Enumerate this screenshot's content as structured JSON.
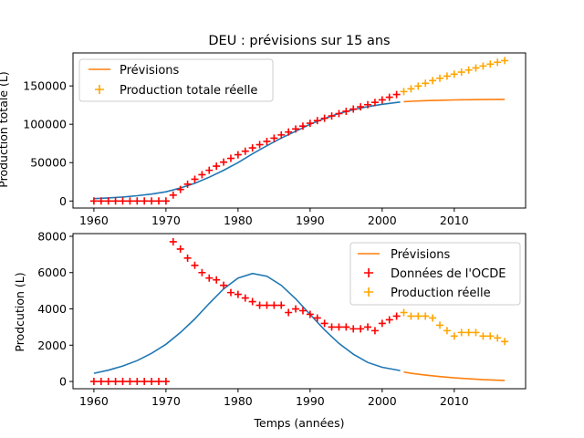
{
  "chart_data": [
    {
      "type": "line",
      "title": "DEU : prévisions sur 15 ans",
      "xlabel": "",
      "ylabel": "Production totale (L)",
      "xlim": [
        1957.1,
        2019.9
      ],
      "ylim": [
        -9200,
        193000
      ],
      "xticks": [
        1960,
        1970,
        1980,
        1990,
        2000,
        2010
      ],
      "yticks": [
        0,
        50000,
        100000,
        150000
      ],
      "yticklabels": [
        "0",
        "50000",
        "100000",
        "150000"
      ],
      "legend_position": "upper-left",
      "legend": [
        "Prévisions",
        "Production totale réelle"
      ],
      "colors": {
        "fit": "#1f77b4",
        "forecast": "#ff7f0e",
        "oecd": "#ff0000",
        "real": "#ffa500"
      },
      "series": [
        {
          "role": "fit",
          "x": [
            1960,
            1962,
            1964,
            1966,
            1968,
            1970,
            1972,
            1974,
            1976,
            1978,
            1980,
            1982,
            1984,
            1986,
            1988,
            1990,
            1992,
            1994,
            1996,
            1998,
            2000,
            2002.5
          ],
          "y": [
            3000,
            4000,
            5200,
            6800,
            9000,
            12000,
            17000,
            23000,
            31000,
            40000,
            50000,
            61500,
            72000,
            82000,
            91000,
            100000,
            107500,
            114000,
            119000,
            123000,
            126000,
            129000
          ]
        },
        {
          "role": "forecast",
          "x": [
            2003,
            2004,
            2006,
            2008,
            2010,
            2012,
            2014,
            2017
          ],
          "y": [
            129500,
            130000,
            130800,
            131300,
            131700,
            132000,
            132200,
            132400
          ]
        },
        {
          "role": "oecd",
          "x": [
            1960,
            1961,
            1962,
            1963,
            1964,
            1965,
            1966,
            1967,
            1968,
            1969,
            1970,
            1971,
            1972,
            1973,
            1974,
            1975,
            1976,
            1977,
            1978,
            1979,
            1980,
            1981,
            1982,
            1983,
            1984,
            1985,
            1986,
            1987,
            1988,
            1989,
            1990,
            1991,
            1992,
            1993,
            1994,
            1995,
            1996,
            1997,
            1998,
            1999,
            2000,
            2001,
            2002
          ],
          "y": [
            0,
            0,
            0,
            0,
            0,
            0,
            0,
            0,
            0,
            0,
            0,
            7700,
            15000,
            21900,
            28300,
            34300,
            40000,
            45400,
            50700,
            55600,
            60300,
            64900,
            69200,
            73400,
            77700,
            81900,
            86100,
            89900,
            93900,
            97600,
            101300,
            104800,
            107800,
            110800,
            113900,
            116900,
            119800,
            122700,
            125500,
            128500,
            131800,
            135200,
            138800
          ]
        },
        {
          "role": "real",
          "x": [
            2003,
            2004,
            2005,
            2006,
            2007,
            2008,
            2009,
            2010,
            2011,
            2012,
            2013,
            2014,
            2015,
            2016,
            2017
          ],
          "y": [
            142600,
            146200,
            149800,
            153400,
            156900,
            160000,
            162800,
            165300,
            168000,
            170700,
            173400,
            175900,
            178400,
            180800,
            183000
          ]
        }
      ]
    },
    {
      "type": "line",
      "title": "",
      "xlabel": "Temps (années)",
      "ylabel": "Prodcution (L)",
      "xlim": [
        1957.1,
        2019.9
      ],
      "ylim": [
        -400,
        8150
      ],
      "xticks": [
        1960,
        1970,
        1980,
        1990,
        2000,
        2010
      ],
      "yticks": [
        0,
        2000,
        4000,
        6000,
        8000
      ],
      "yticklabels": [
        "0",
        "2000",
        "4000",
        "6000",
        "8000"
      ],
      "legend_position": "upper-right",
      "legend": [
        "Prévisions",
        "Données de l'OCDE",
        "Production réelle"
      ],
      "colors": {
        "fit": "#1f77b4",
        "forecast": "#ff7f0e",
        "oecd": "#ff0000",
        "real": "#ffa500"
      },
      "series": [
        {
          "role": "fit",
          "x": [
            1960,
            1962,
            1964,
            1966,
            1968,
            1970,
            1972,
            1974,
            1976,
            1978,
            1980,
            1982,
            1984,
            1986,
            1988,
            1990,
            1992,
            1994,
            1996,
            1998,
            2000,
            2002.5
          ],
          "y": [
            450,
            620,
            850,
            1150,
            1550,
            2050,
            2700,
            3450,
            4300,
            5100,
            5700,
            5950,
            5800,
            5300,
            4550,
            3700,
            2850,
            2100,
            1500,
            1050,
            780,
            600
          ]
        },
        {
          "role": "forecast",
          "x": [
            2003,
            2004,
            2006,
            2008,
            2010,
            2012,
            2014,
            2017
          ],
          "y": [
            520,
            450,
            350,
            270,
            200,
            150,
            100,
            60
          ]
        },
        {
          "role": "oecd",
          "x": [
            1960,
            1961,
            1962,
            1963,
            1964,
            1965,
            1966,
            1967,
            1968,
            1969,
            1970,
            1971,
            1972,
            1973,
            1974,
            1975,
            1976,
            1977,
            1978,
            1979,
            1980,
            1981,
            1982,
            1983,
            1984,
            1985,
            1986,
            1987,
            1988,
            1989,
            1990,
            1991,
            1992,
            1993,
            1994,
            1995,
            1996,
            1997,
            1998,
            1999,
            2000,
            2001,
            2002
          ],
          "y": [
            0,
            0,
            0,
            0,
            0,
            0,
            0,
            0,
            0,
            0,
            0,
            7700,
            7300,
            6800,
            6400,
            6000,
            5700,
            5600,
            5300,
            4900,
            4800,
            4600,
            4400,
            4200,
            4200,
            4200,
            4200,
            3800,
            4000,
            3900,
            3700,
            3500,
            3200,
            3000,
            3000,
            3000,
            2900,
            2900,
            3000,
            2800,
            3200,
            3400,
            3600
          ]
        },
        {
          "role": "real",
          "x": [
            2003,
            2004,
            2005,
            2006,
            2007,
            2008,
            2009,
            2010,
            2011,
            2012,
            2013,
            2014,
            2015,
            2016,
            2017
          ],
          "y": [
            3800,
            3600,
            3600,
            3600,
            3500,
            3100,
            2800,
            2500,
            2700,
            2700,
            2700,
            2500,
            2500,
            2400,
            2200
          ]
        }
      ]
    }
  ]
}
